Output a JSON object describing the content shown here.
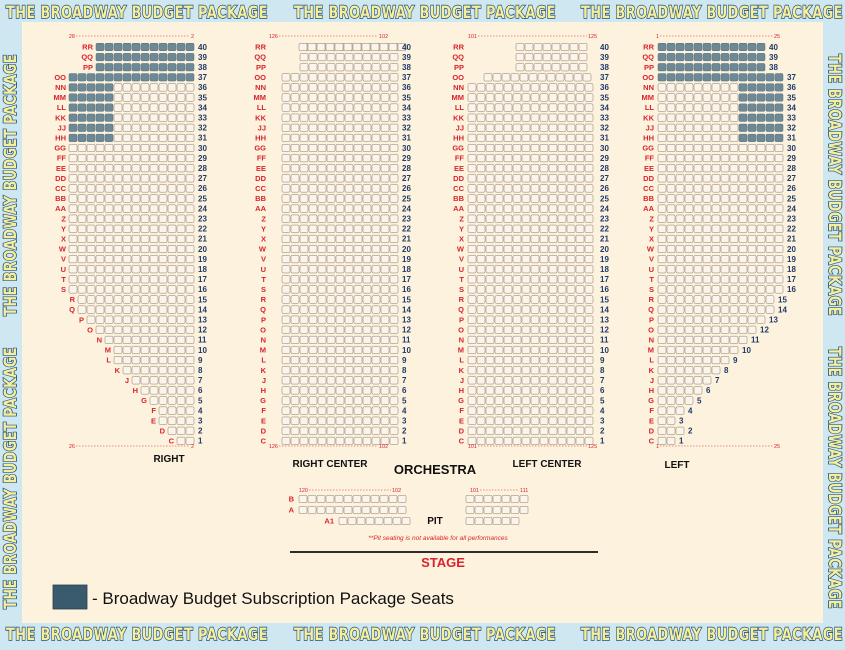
{
  "banner": {
    "text": "THE BROADWAY BUDGET PACKAGE"
  },
  "rows": {
    "upper": [
      "RR",
      "QQ",
      "PP",
      "OO",
      "NN",
      "MM",
      "LL",
      "KK",
      "JJ",
      "HH",
      "GG",
      "FF",
      "EE",
      "DD",
      "CC",
      "BB",
      "AA",
      "Z",
      "Y",
      "X",
      "W",
      "V",
      "U",
      "T",
      "S",
      "R",
      "Q",
      "P",
      "O",
      "N",
      "M",
      "L",
      "K",
      "J",
      "H",
      "G",
      "F",
      "E",
      "D",
      "C"
    ],
    "numbers": [
      "40",
      "39",
      "38",
      "37",
      "36",
      "35",
      "34",
      "33",
      "32",
      "31",
      "30",
      "29",
      "28",
      "27",
      "26",
      "25",
      "24",
      "23",
      "22",
      "21",
      "20",
      "19",
      "18",
      "17",
      "16",
      "15",
      "14",
      "13",
      "12",
      "11",
      "10",
      "9",
      "8",
      "7",
      "6",
      "5",
      "4",
      "3",
      "2",
      "1"
    ]
  },
  "sections": {
    "right": {
      "label": "RIGHT",
      "top_range": [
        "28",
        "2"
      ],
      "bottom_range": [
        "26",
        "2"
      ]
    },
    "right_center": {
      "label": "RIGHT CENTER",
      "top_range": [
        "126",
        "102"
      ],
      "bottom_range": [
        "126",
        "102"
      ]
    },
    "left_center": {
      "label": "LEFT CENTER",
      "top_range": [
        "101",
        "125"
      ],
      "bottom_range": [
        "101",
        "125"
      ]
    },
    "left": {
      "label": "LEFT",
      "top_range": [
        "1",
        "25"
      ],
      "bottom_range": [
        "1",
        "25"
      ]
    }
  },
  "orchestra_label": "ORCHESTRA",
  "pit": {
    "label": "PIT",
    "rows": [
      "B",
      "A",
      "A1"
    ],
    "left_range": [
      "120",
      "102"
    ],
    "right_range": [
      "101",
      "111"
    ],
    "note": "**Pit seating is not available for all performances"
  },
  "stage_label": "STAGE",
  "legend": {
    "text": "- Broadway Budget Subscription Package Seats",
    "color": "#3a5a6e"
  },
  "colors": {
    "seat_fill": "#faf4ea",
    "seat_stroke": "#8a7a66",
    "package_seat": "#6e8996",
    "letters": "#d9232c",
    "numbers": "#1f3a6b"
  }
}
